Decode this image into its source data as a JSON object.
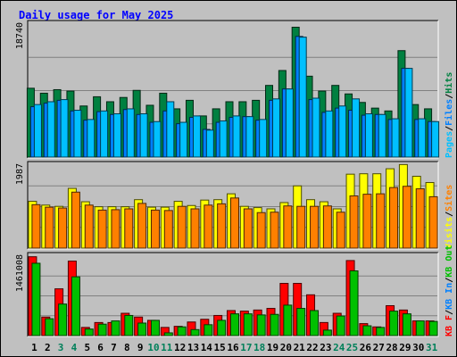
{
  "chart_data": {
    "type": "bar",
    "title": "Daily usage for May 2025",
    "categories": [
      "1",
      "2",
      "3",
      "4",
      "5",
      "6",
      "7",
      "8",
      "9",
      "10",
      "11",
      "12",
      "13",
      "14",
      "15",
      "16",
      "17",
      "18",
      "19",
      "20",
      "21",
      "22",
      "23",
      "24",
      "25",
      "26",
      "27",
      "28",
      "29",
      "30",
      "31"
    ],
    "weekend_days": [
      "3",
      "4",
      "10",
      "11",
      "17",
      "18",
      "24",
      "25",
      "31"
    ],
    "panels": [
      {
        "id": "hits",
        "ymax_label": "18740",
        "ymax": 18740,
        "y_axis_labels": [
          {
            "text": "Pages",
            "color": "#00c0ff"
          },
          {
            "text": "Files",
            "color": "#0080ff"
          },
          {
            "text": "Hits",
            "color": "#008040"
          }
        ],
        "series": [
          {
            "name": "Hits",
            "color": "#008040",
            "values": [
              9700,
              9000,
              9500,
              9300,
              7200,
              8500,
              7800,
              8400,
              9400,
              7300,
              9000,
              6800,
              8000,
              5800,
              6800,
              7800,
              7800,
              8000,
              10100,
              12200,
              18300,
              11400,
              9300,
              10100,
              8900,
              7700,
              6900,
              6500,
              15000,
              7400,
              6800
            ]
          },
          {
            "name": "Files",
            "color": "#0080ff",
            "values": [
              7100,
              7600,
              8000,
              6500,
              5200,
              6400,
              6000,
              6700,
              6000,
              4900,
              6500,
              4700,
              5600,
              3900,
              4900,
              5600,
              5700,
              5200,
              8000,
              9600,
              17000,
              8100,
              6300,
              6900,
              6600,
              5900,
              6000,
              5300,
              12500,
              5300,
              5000
            ]
          },
          {
            "name": "Pages",
            "color": "#00c0ff",
            "values": [
              7400,
              7800,
              8100,
              6600,
              5300,
              6500,
              6100,
              6800,
              6100,
              5000,
              7800,
              4900,
              5800,
              3800,
              5100,
              5800,
              5700,
              5300,
              8200,
              9600,
              16900,
              8300,
              6500,
              7200,
              8200,
              6100,
              6000,
              5400,
              12500,
              5400,
              5000
            ]
          }
        ]
      },
      {
        "id": "visits",
        "ymax_label": "1987",
        "ymax": 1987,
        "y_axis_labels": [
          {
            "text": "Visits",
            "color": "#ffff00"
          },
          {
            "text": "Sites",
            "color": "#ff8000"
          }
        ],
        "series": [
          {
            "name": "Visits",
            "color": "#ffff00",
            "values": [
              1120,
              1030,
              1000,
              1430,
              1110,
              990,
              990,
              990,
              1160,
              980,
              980,
              1120,
              1020,
              1150,
              1160,
              1300,
              1000,
              970,
              940,
              1090,
              1490,
              1160,
              1110,
              940,
              1770,
              1780,
              1780,
              1900,
              2000,
              1720,
              1570
            ]
          },
          {
            "name": "Sites",
            "color": "#ff8000",
            "values": [
              1040,
              980,
              960,
              1340,
              1030,
              910,
              920,
              940,
              1070,
              910,
              900,
              1000,
              940,
              1030,
              1060,
              1200,
              940,
              850,
              860,
              1010,
              1000,
              1000,
              1010,
              860,
              1250,
              1290,
              1300,
              1450,
              1480,
              1420,
              1230
            ]
          }
        ]
      },
      {
        "id": "kbytes",
        "ymax_label": "1461008",
        "ymax": 1461008,
        "y_axis_labels": [
          {
            "text": "KB F",
            "color": "#ff0000"
          },
          {
            "text": "KB In",
            "color": "#0080ff"
          },
          {
            "text": "KB Out",
            "color": "#00c000"
          }
        ],
        "series": [
          {
            "name": "KB F",
            "color": "#ff0000",
            "values": [
              1450000,
              340000,
              860000,
              1370000,
              150000,
              240000,
              240000,
              410000,
              340000,
              280000,
              150000,
              170000,
              250000,
              300000,
              370000,
              460000,
              450000,
              470000,
              500000,
              960000,
              960000,
              750000,
              240000,
              410000,
              1380000,
              220000,
              160000,
              550000,
              470000,
              270000,
              270000
            ]
          },
          {
            "name": "KB Out",
            "color": "#00c000",
            "values": [
              1330000,
              310000,
              580000,
              1080000,
              120000,
              210000,
              270000,
              370000,
              230000,
              280000,
              50000,
              160000,
              110000,
              200000,
              280000,
              400000,
              400000,
              380000,
              390000,
              560000,
              500000,
              460000,
              100000,
              360000,
              1190000,
              180000,
              150000,
              450000,
              400000,
              270000,
              260000
            ]
          }
        ]
      }
    ]
  }
}
